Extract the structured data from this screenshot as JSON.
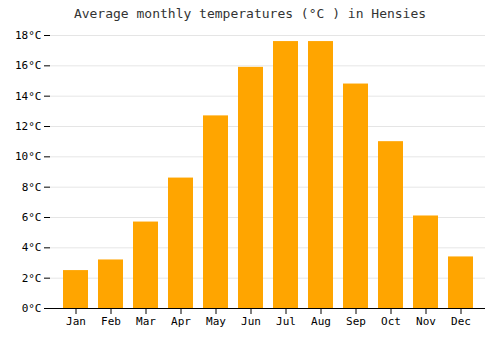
{
  "chart_data": {
    "type": "bar",
    "title": "Average monthly temperatures (°C ) in Hensies",
    "categories": [
      "Jan",
      "Feb",
      "Mar",
      "Apr",
      "May",
      "Jun",
      "Jul",
      "Aug",
      "Sep",
      "Oct",
      "Nov",
      "Dec"
    ],
    "values": [
      2.5,
      3.2,
      5.7,
      8.6,
      12.7,
      15.9,
      17.6,
      17.6,
      14.8,
      11.0,
      6.1,
      3.4
    ],
    "color": "#FFA500",
    "ylim": [
      0,
      18
    ],
    "yticks": [
      {
        "value": 0,
        "label": "0°C"
      },
      {
        "value": 2,
        "label": "2°C"
      },
      {
        "value": 4,
        "label": "4°C"
      },
      {
        "value": 6,
        "label": "6°C"
      },
      {
        "value": 8,
        "label": "8°C"
      },
      {
        "value": 10,
        "label": "10°C"
      },
      {
        "value": 12,
        "label": "12°C"
      },
      {
        "value": 14,
        "label": "14°C"
      },
      {
        "value": 16,
        "label": "16°C"
      },
      {
        "value": 18,
        "label": "18°C"
      }
    ],
    "grid": true
  }
}
